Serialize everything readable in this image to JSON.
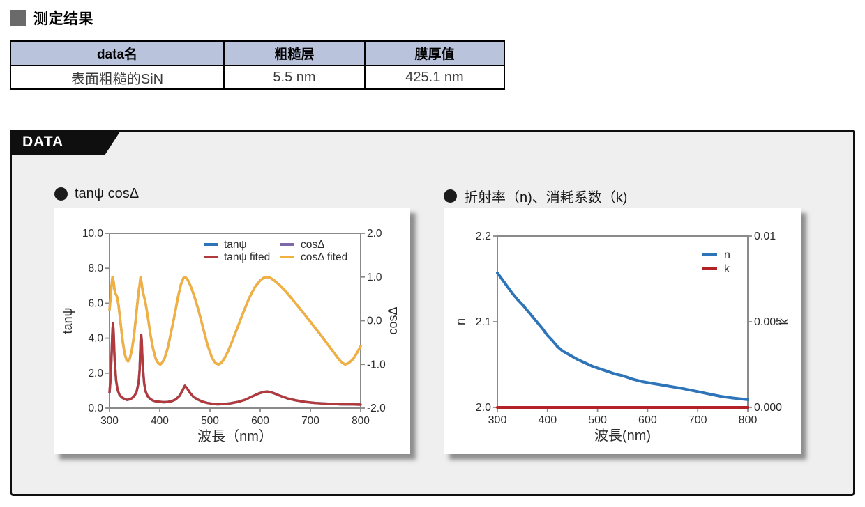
{
  "results_section": {
    "title": "测定结果",
    "table": {
      "headers": [
        "data名",
        "粗糙层",
        "膜厚值"
      ],
      "rows": [
        [
          "表面粗糙的SiN",
          "5.5 nm",
          "425.1 nm"
        ]
      ],
      "header_bg": "#b9c3dc"
    }
  },
  "data_panel": {
    "tab_label": "DATA",
    "background": "#efefef",
    "border_color": "#0f0f0f"
  },
  "colors": {
    "tanpsi": "#2e74b8",
    "tanpsi_fited": "#b23a3c",
    "cosdelta": "#7b69a9",
    "cosdelta_fited": "#f2b03e",
    "n_line": "#2e74b8",
    "k_line": "#b22226",
    "axis": "#8a8a8a",
    "table_header": "#b9c3dc"
  },
  "chart_data": [
    {
      "type": "line",
      "title": "tanψ cosΔ",
      "xlabel": "波長（nm）",
      "ylabel_left": "tanψ",
      "ylabel_right": "cosΔ",
      "xlim": [
        300,
        800
      ],
      "ylim_left": [
        0,
        10
      ],
      "ylim_right": [
        -2,
        2
      ],
      "grid": false,
      "legend_position": "top-center-two-columns",
      "xticks": [
        {
          "v": 300,
          "label": "300"
        },
        {
          "v": 400,
          "label": "400"
        },
        {
          "v": 500,
          "label": "500"
        },
        {
          "v": 600,
          "label": "600"
        },
        {
          "v": 700,
          "label": "700"
        },
        {
          "v": 800,
          "label": "800"
        }
      ],
      "yticks_left": [
        {
          "v": 0,
          "label": "0.0"
        },
        {
          "v": 2,
          "label": "2.0"
        },
        {
          "v": 4,
          "label": "4.0"
        },
        {
          "v": 6,
          "label": "6.0"
        },
        {
          "v": 8,
          "label": "8.0"
        },
        {
          "v": 10,
          "label": "10.0"
        }
      ],
      "yticks_right": [
        {
          "v": -2,
          "label": "-2.0"
        },
        {
          "v": -1,
          "label": "-1.0"
        },
        {
          "v": 0,
          "label": "0.0"
        },
        {
          "v": 1,
          "label": "1.0"
        },
        {
          "v": 2,
          "label": "2.0"
        }
      ],
      "series": [
        {
          "name": "tanψ",
          "color": "#2e74b8",
          "axis": "left",
          "x": [
            300,
            302,
            304,
            306,
            307,
            308,
            310,
            313,
            316,
            320,
            325,
            330,
            335,
            340,
            345,
            350,
            354,
            358,
            360,
            362,
            363,
            364,
            366,
            369,
            372,
            376,
            381,
            387,
            393,
            400,
            408,
            416,
            424,
            432,
            440,
            446,
            450,
            454,
            460,
            467,
            475,
            484,
            494,
            504,
            515,
            525,
            540,
            555,
            570,
            585,
            598,
            608,
            614,
            620,
            630,
            642,
            655,
            670,
            690,
            710,
            735,
            760,
            785,
            800
          ],
          "y": [
            0.9,
            1.6,
            3.0,
            4.5,
            4.85,
            4.4,
            2.9,
            1.6,
            1.05,
            0.75,
            0.6,
            0.52,
            0.47,
            0.5,
            0.57,
            0.72,
            0.95,
            1.5,
            2.2,
            3.9,
            4.2,
            3.9,
            2.5,
            1.4,
            0.95,
            0.68,
            0.52,
            0.43,
            0.38,
            0.36,
            0.34,
            0.35,
            0.4,
            0.5,
            0.72,
            1.05,
            1.28,
            1.15,
            0.88,
            0.65,
            0.5,
            0.38,
            0.3,
            0.25,
            0.22,
            0.23,
            0.27,
            0.35,
            0.48,
            0.68,
            0.85,
            0.93,
            0.95,
            0.92,
            0.82,
            0.68,
            0.55,
            0.45,
            0.35,
            0.29,
            0.25,
            0.22,
            0.21,
            0.2
          ]
        },
        {
          "name": "tanψ fited",
          "color": "#b23a3c",
          "axis": "left",
          "x": [
            300,
            302,
            304,
            306,
            307,
            308,
            310,
            313,
            316,
            320,
            325,
            330,
            335,
            340,
            345,
            350,
            354,
            358,
            360,
            362,
            363,
            364,
            366,
            369,
            372,
            376,
            381,
            387,
            393,
            400,
            408,
            416,
            424,
            432,
            440,
            446,
            450,
            454,
            460,
            467,
            475,
            484,
            494,
            504,
            515,
            525,
            540,
            555,
            570,
            585,
            598,
            608,
            614,
            620,
            630,
            642,
            655,
            670,
            690,
            710,
            735,
            760,
            785,
            800
          ],
          "y": [
            0.9,
            1.6,
            3.0,
            4.5,
            4.85,
            4.4,
            2.9,
            1.6,
            1.05,
            0.75,
            0.6,
            0.52,
            0.47,
            0.5,
            0.57,
            0.72,
            0.95,
            1.5,
            2.2,
            3.9,
            4.2,
            3.9,
            2.5,
            1.4,
            0.95,
            0.68,
            0.52,
            0.43,
            0.38,
            0.36,
            0.34,
            0.35,
            0.4,
            0.5,
            0.72,
            1.05,
            1.28,
            1.15,
            0.88,
            0.65,
            0.5,
            0.38,
            0.3,
            0.25,
            0.22,
            0.23,
            0.27,
            0.35,
            0.48,
            0.68,
            0.85,
            0.93,
            0.95,
            0.92,
            0.82,
            0.68,
            0.55,
            0.45,
            0.35,
            0.29,
            0.25,
            0.22,
            0.21,
            0.2
          ]
        },
        {
          "name": "cosΔ",
          "color": "#7b69a9",
          "axis": "right",
          "x": [
            300,
            302,
            304,
            306,
            308,
            310,
            312,
            315,
            318,
            322,
            326,
            330,
            334,
            337,
            340,
            344,
            348,
            352,
            355,
            358,
            360,
            362,
            364,
            366,
            368,
            371,
            374,
            378,
            382,
            387,
            392,
            397,
            401,
            405,
            410,
            416,
            422,
            429,
            436,
            442,
            447,
            451,
            456,
            462,
            469,
            477,
            486,
            495,
            504,
            511,
            517,
            522,
            528,
            536,
            545,
            555,
            566,
            578,
            590,
            600,
            608,
            614,
            620,
            628,
            638,
            650,
            662,
            676,
            690,
            705,
            720,
            735,
            748,
            757,
            763,
            769,
            776,
            785,
            793,
            800
          ],
          "y": [
            0.25,
            0.5,
            0.8,
            1.0,
            0.9,
            0.7,
            0.62,
            0.55,
            0.35,
            -0.05,
            -0.45,
            -0.75,
            -0.9,
            -0.93,
            -0.88,
            -0.7,
            -0.4,
            0.0,
            0.35,
            0.68,
            0.82,
            1.0,
            0.85,
            0.68,
            0.58,
            0.45,
            0.25,
            -0.05,
            -0.35,
            -0.65,
            -0.87,
            -0.97,
            -1.0,
            -0.96,
            -0.85,
            -0.62,
            -0.3,
            0.1,
            0.52,
            0.82,
            0.97,
            1.0,
            0.93,
            0.78,
            0.55,
            0.25,
            -0.15,
            -0.55,
            -0.85,
            -0.97,
            -1.0,
            -0.97,
            -0.88,
            -0.7,
            -0.45,
            -0.15,
            0.18,
            0.52,
            0.78,
            0.92,
            0.99,
            1.0,
            0.98,
            0.92,
            0.82,
            0.68,
            0.52,
            0.32,
            0.12,
            -0.1,
            -0.32,
            -0.55,
            -0.75,
            -0.89,
            -0.96,
            -1.0,
            -0.97,
            -0.88,
            -0.73,
            -0.58
          ]
        },
        {
          "name": "cosΔ fited",
          "color": "#f2b03e",
          "axis": "right",
          "x": [
            300,
            302,
            304,
            306,
            308,
            310,
            312,
            315,
            318,
            322,
            326,
            330,
            334,
            337,
            340,
            344,
            348,
            352,
            355,
            358,
            360,
            362,
            364,
            366,
            368,
            371,
            374,
            378,
            382,
            387,
            392,
            397,
            401,
            405,
            410,
            416,
            422,
            429,
            436,
            442,
            447,
            451,
            456,
            462,
            469,
            477,
            486,
            495,
            504,
            511,
            517,
            522,
            528,
            536,
            545,
            555,
            566,
            578,
            590,
            600,
            608,
            614,
            620,
            628,
            638,
            650,
            662,
            676,
            690,
            705,
            720,
            735,
            748,
            757,
            763,
            769,
            776,
            785,
            793,
            800
          ],
          "y": [
            0.25,
            0.5,
            0.8,
            1.0,
            0.9,
            0.7,
            0.62,
            0.55,
            0.35,
            -0.05,
            -0.45,
            -0.75,
            -0.9,
            -0.93,
            -0.88,
            -0.7,
            -0.4,
            0.0,
            0.35,
            0.68,
            0.82,
            1.0,
            0.85,
            0.68,
            0.58,
            0.45,
            0.25,
            -0.05,
            -0.35,
            -0.65,
            -0.87,
            -0.97,
            -1.0,
            -0.96,
            -0.85,
            -0.62,
            -0.3,
            0.1,
            0.52,
            0.82,
            0.97,
            1.0,
            0.93,
            0.78,
            0.55,
            0.25,
            -0.15,
            -0.55,
            -0.85,
            -0.97,
            -1.0,
            -0.97,
            -0.88,
            -0.7,
            -0.45,
            -0.15,
            0.18,
            0.52,
            0.78,
            0.92,
            0.99,
            1.0,
            0.98,
            0.92,
            0.82,
            0.68,
            0.52,
            0.32,
            0.12,
            -0.1,
            -0.32,
            -0.55,
            -0.75,
            -0.89,
            -0.96,
            -1.0,
            -0.97,
            -0.88,
            -0.73,
            -0.58
          ]
        }
      ]
    },
    {
      "type": "line",
      "title": "折射率（n)、消耗系数（k)",
      "xlabel": "波長(nm)",
      "ylabel_left": "n",
      "ylabel_right": "k",
      "xlim": [
        300,
        800
      ],
      "ylim_left": [
        2.0,
        2.2
      ],
      "ylim_right": [
        0,
        0.01
      ],
      "grid": false,
      "legend_position": "top-right",
      "xticks": [
        {
          "v": 300,
          "label": "300"
        },
        {
          "v": 400,
          "label": "400"
        },
        {
          "v": 500,
          "label": "500"
        },
        {
          "v": 600,
          "label": "600"
        },
        {
          "v": 700,
          "label": "700"
        },
        {
          "v": 800,
          "label": "800"
        }
      ],
      "yticks_left": [
        {
          "v": 2.0,
          "label": "2.0"
        },
        {
          "v": 2.1,
          "label": "2.1"
        },
        {
          "v": 2.2,
          "label": "2.2"
        }
      ],
      "yticks_right": [
        {
          "v": 0,
          "label": "0.000"
        },
        {
          "v": 0.005,
          "label": "0.005"
        },
        {
          "v": 0.01,
          "label": "0.01"
        }
      ],
      "series": [
        {
          "name": "n",
          "color": "#2e74b8",
          "axis": "left",
          "x": [
            300,
            310,
            320,
            330,
            340,
            350,
            360,
            370,
            380,
            390,
            400,
            410,
            420,
            430,
            445,
            460,
            475,
            490,
            505,
            520,
            535,
            550,
            570,
            590,
            610,
            630,
            650,
            670,
            695,
            720,
            745,
            770,
            800
          ],
          "y": [
            2.157,
            2.149,
            2.141,
            2.133,
            2.126,
            2.12,
            2.113,
            2.106,
            2.099,
            2.092,
            2.084,
            2.078,
            2.071,
            2.066,
            2.061,
            2.056,
            2.052,
            2.048,
            2.045,
            2.042,
            2.039,
            2.037,
            2.033,
            2.03,
            2.028,
            2.026,
            2.024,
            2.022,
            2.019,
            2.016,
            2.013,
            2.011,
            2.009
          ]
        },
        {
          "name": "k",
          "color": "#b22226",
          "axis": "right",
          "x": [
            300,
            800
          ],
          "y": [
            0,
            0
          ]
        }
      ]
    }
  ]
}
